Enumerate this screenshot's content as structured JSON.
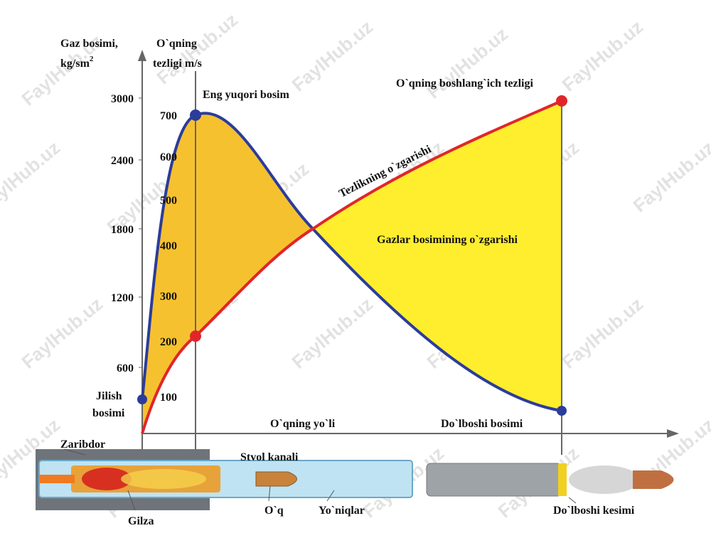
{
  "axes": {
    "pressure_label": "Gaz bosimi,",
    "pressure_unit": "kg/sm",
    "pressure_unit_sup": "2",
    "velocity_label": "O`qning",
    "velocity_unit": "tezligi m/s",
    "pressure_ticks": [
      "3000",
      "2400",
      "1800",
      "1200",
      "600"
    ],
    "velocity_ticks": [
      "700",
      "600",
      "500",
      "400",
      "300",
      "200",
      "100"
    ],
    "path_label": "O`qning yo`li"
  },
  "annotations": {
    "peak": "Eng yuqori bosim",
    "muzzle_velocity": "O`qning boshlang`ich tezligi",
    "velocity_curve": "Tezlikning  o`zgarishi",
    "pressure_curve": "Gazlar bosimining o`zgarishi",
    "start_pressure_1": "Jilish",
    "start_pressure_2": "bosimi",
    "muzzle_pressure": "Do`lboshi bosimi"
  },
  "parts": {
    "primer": "Zaribdor",
    "bore": "Stvol kanali",
    "case": "Gilza",
    "bullet": "O`q",
    "rifling": "Yo`niqlar",
    "muzzle": "Do`lboshi kesimi"
  },
  "watermark": "FaylHub.uz"
}
